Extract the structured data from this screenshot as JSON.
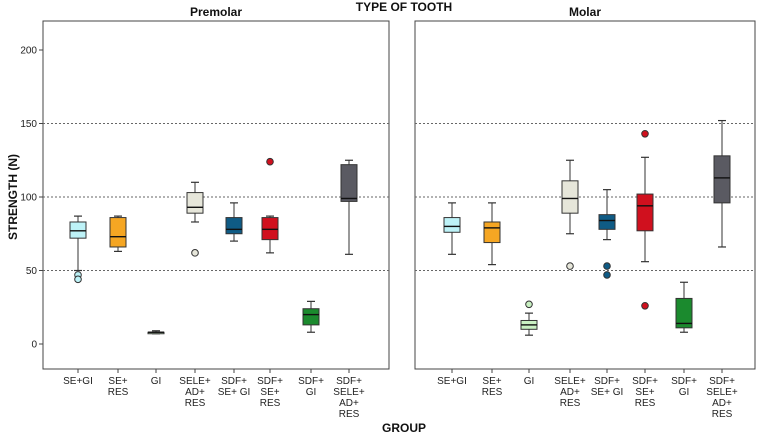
{
  "chart_data": {
    "type": "boxplot",
    "title": "TYPE OF TOOTH",
    "xlabel": "GROUP",
    "ylabel": "STRENGTH (N)",
    "ylim": [
      0,
      200
    ],
    "yticks": [
      "0",
      "50",
      "100",
      "150",
      "200"
    ],
    "reference_lines": [
      50,
      100,
      150
    ],
    "groups": [
      {
        "key": "se_gi",
        "label_lines": [
          "SE+GI"
        ],
        "color": "#bdf2f7"
      },
      {
        "key": "se_res",
        "label_lines": [
          "SE+",
          "RES"
        ],
        "color": "#f5a623"
      },
      {
        "key": "gi",
        "label_lines": [
          "GI"
        ],
        "color": "#c9f0c2"
      },
      {
        "key": "sele_ad_res",
        "label_lines": [
          "SELE+",
          "AD+",
          "RES"
        ],
        "color": "#e6e6da"
      },
      {
        "key": "sdf_se_gi",
        "label_lines": [
          "SDF+",
          "SE+ GI"
        ],
        "color": "#0f5b85"
      },
      {
        "key": "sdf_se_res",
        "label_lines": [
          "SDF+",
          "SE+",
          "RES"
        ],
        "color": "#d0101e"
      },
      {
        "key": "sdf_gi",
        "label_lines": [
          "SDF+",
          "GI"
        ],
        "color": "#1b8a2e"
      },
      {
        "key": "sdf_sele_ad_res",
        "label_lines": [
          "SDF+",
          "SELE+",
          "AD+",
          "RES"
        ],
        "color": "#5a5a62"
      }
    ],
    "panels": [
      {
        "title": "Premolar",
        "boxes": [
          {
            "min": 50,
            "q1": 72,
            "median": 77,
            "q3": 83,
            "max": 87,
            "outliers": [
              47,
              44
            ]
          },
          {
            "min": 63,
            "q1": 66,
            "median": 73,
            "q3": 86,
            "max": 87,
            "outliers": []
          },
          {
            "min": 7,
            "q1": 7,
            "median": 8,
            "q3": 8,
            "max": 9,
            "outliers": []
          },
          {
            "min": 83,
            "q1": 89,
            "median": 93,
            "q3": 103,
            "max": 110,
            "outliers": [
              62
            ]
          },
          {
            "min": 70,
            "q1": 75,
            "median": 78,
            "q3": 86,
            "max": 96,
            "outliers": []
          },
          {
            "min": 62,
            "q1": 71,
            "median": 78,
            "q3": 86,
            "max": 87,
            "outliers": [
              124
            ]
          },
          {
            "min": 8,
            "q1": 13,
            "median": 20,
            "q3": 24,
            "max": 29,
            "outliers": []
          },
          {
            "min": 61,
            "q1": 97,
            "median": 99,
            "q3": 122,
            "max": 125,
            "outliers": []
          }
        ]
      },
      {
        "title": "Molar",
        "boxes": [
          {
            "min": 61,
            "q1": 76,
            "median": 80,
            "q3": 86,
            "max": 96,
            "outliers": []
          },
          {
            "min": 54,
            "q1": 69,
            "median": 79,
            "q3": 83,
            "max": 96,
            "outliers": []
          },
          {
            "min": 6,
            "q1": 10,
            "median": 13,
            "q3": 16,
            "max": 21,
            "outliers": [
              27
            ]
          },
          {
            "min": 75,
            "q1": 89,
            "median": 99,
            "q3": 111,
            "max": 125,
            "outliers": [
              53
            ]
          },
          {
            "min": 71,
            "q1": 78,
            "median": 84,
            "q3": 88,
            "max": 105,
            "outliers": [
              53,
              47
            ]
          },
          {
            "min": 56,
            "q1": 77,
            "median": 94,
            "q3": 102,
            "max": 127,
            "outliers": [
              143,
              26
            ]
          },
          {
            "min": 8,
            "q1": 11,
            "median": 14,
            "q3": 31,
            "max": 42,
            "outliers": []
          },
          {
            "min": 66,
            "q1": 96,
            "median": 113,
            "q3": 128,
            "max": 152,
            "outliers": []
          }
        ]
      }
    ]
  }
}
